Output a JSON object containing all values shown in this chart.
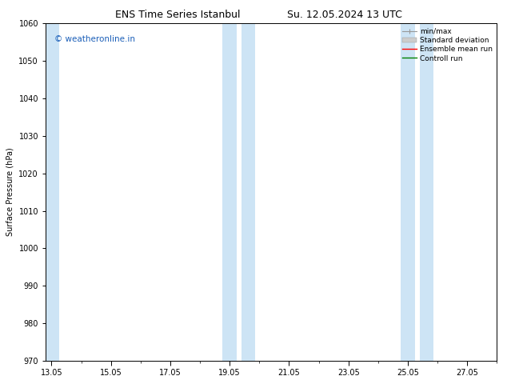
{
  "title_left": "ENS Time Series Istanbul",
  "title_right": "Su. 12.05.2024 13 UTC",
  "ylabel": "Surface Pressure (hPa)",
  "ylim": [
    970,
    1060
  ],
  "yticks": [
    970,
    980,
    990,
    1000,
    1010,
    1020,
    1030,
    1040,
    1050,
    1060
  ],
  "xtick_labels": [
    "13.05",
    "15.05",
    "17.05",
    "19.05",
    "21.05",
    "23.05",
    "25.05",
    "27.05"
  ],
  "xtick_positions": [
    0,
    2,
    4,
    6,
    8,
    10,
    12,
    14
  ],
  "xlim": [
    -0.2,
    15.0
  ],
  "shade_color": "#cde4f5",
  "shade_alpha": 1.0,
  "watermark_text": "© weatheronline.in",
  "watermark_color": "#1a5eb8",
  "watermark_fontsize": 7.5,
  "legend_items": [
    {
      "label": "min/max",
      "color": "#aaaaaa"
    },
    {
      "label": "Standard deviation",
      "color": "#cccccc"
    },
    {
      "label": "Ensemble mean run",
      "color": "red"
    },
    {
      "label": "Controll run",
      "color": "green"
    }
  ],
  "bg_color": "#ffffff",
  "title_fontsize": 9,
  "axis_label_fontsize": 7,
  "tick_fontsize": 7,
  "legend_fontsize": 6.5
}
